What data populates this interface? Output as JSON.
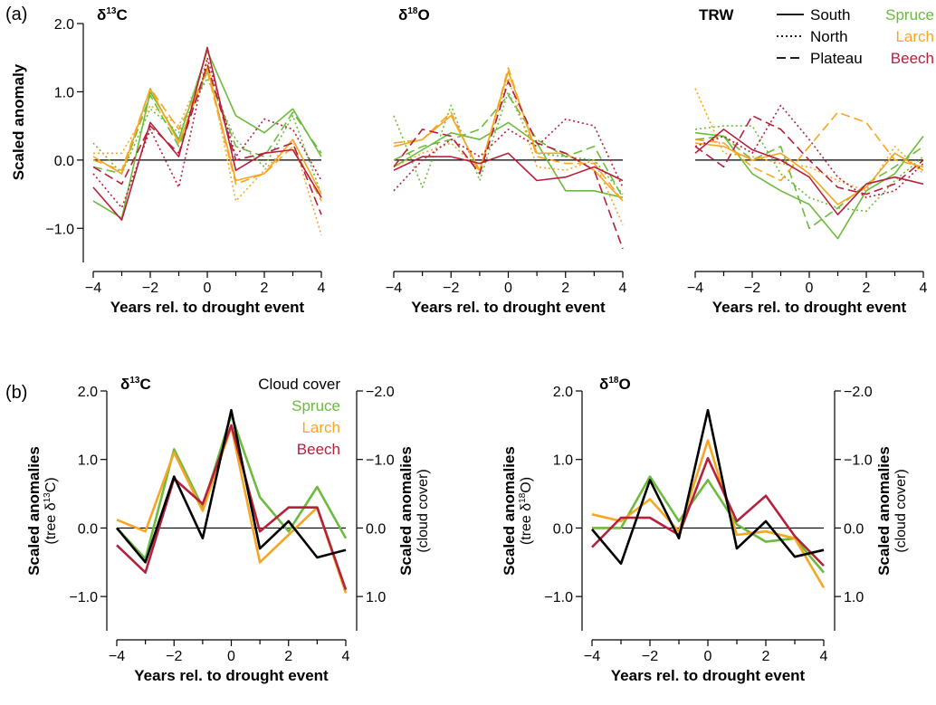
{
  "panel_labels": [
    "(a)",
    "(b)"
  ],
  "legend_a": {
    "linestyles": [
      {
        "label": "South",
        "dash": "solid"
      },
      {
        "label": "North",
        "dash": "dotted"
      },
      {
        "label": "Plateau",
        "dash": "dashed"
      }
    ],
    "species": [
      {
        "label": "Spruce",
        "color": "#6cbb3c"
      },
      {
        "label": "Larch",
        "color": "#f5a623"
      },
      {
        "label": "Beech",
        "color": "#b5203b"
      }
    ]
  },
  "legend_b": [
    {
      "label": "Cloud cover",
      "color": "#000000"
    },
    {
      "label": "Spruce",
      "color": "#6cbb3c"
    },
    {
      "label": "Larch",
      "color": "#f5a623"
    },
    {
      "label": "Beech",
      "color": "#b5203b"
    }
  ],
  "chart_data": [
    {
      "id": "a1",
      "type": "line",
      "title_main": "δ",
      "title_sup": "13",
      "title_rest": "C",
      "xlabel": "Years rel. to drought event",
      "ylabel": "Scaled anomaly",
      "x": [
        -4,
        -3,
        -2,
        -1,
        0,
        1,
        2,
        3,
        4
      ],
      "xlim": [
        -4,
        4
      ],
      "ylim": [
        -1.5,
        2.0
      ],
      "xticks": [
        -4,
        -2,
        0,
        2,
        4
      ],
      "yticks": [
        2.0,
        1.0,
        0.0,
        -1.0
      ],
      "series": [
        {
          "species": "Spruce",
          "site": "South",
          "values": [
            -0.6,
            -0.85,
            1.0,
            0.3,
            1.6,
            0.65,
            0.4,
            0.75,
            0.05
          ]
        },
        {
          "species": "Spruce",
          "site": "North",
          "values": [
            0.25,
            -0.2,
            0.75,
            0.4,
            1.2,
            0.3,
            -0.1,
            0.65,
            -0.5
          ]
        },
        {
          "species": "Spruce",
          "site": "Plateau",
          "values": [
            -0.1,
            -0.2,
            0.95,
            0.2,
            1.3,
            0.2,
            0.05,
            0.7,
            0.1
          ]
        },
        {
          "species": "Larch",
          "site": "South",
          "values": [
            0.05,
            -0.2,
            1.05,
            0.25,
            1.35,
            -0.3,
            -0.2,
            0.3,
            -0.5
          ]
        },
        {
          "species": "Larch",
          "site": "North",
          "values": [
            0.1,
            0.1,
            0.8,
            0.5,
            1.45,
            -0.6,
            -0.15,
            0.3,
            -1.1
          ]
        },
        {
          "species": "Larch",
          "site": "Plateau",
          "values": [
            0.0,
            -0.15,
            1.05,
            0.45,
            1.3,
            -0.35,
            -0.2,
            0.2,
            -0.6
          ]
        },
        {
          "species": "Beech",
          "site": "South",
          "values": [
            -0.4,
            -0.88,
            0.55,
            0.05,
            1.65,
            -0.15,
            0.1,
            0.15,
            -0.55
          ]
        },
        {
          "species": "Beech",
          "site": "North",
          "values": [
            -0.2,
            -0.7,
            0.45,
            -0.4,
            1.5,
            0.05,
            0.6,
            0.45,
            -0.3
          ]
        },
        {
          "species": "Beech",
          "site": "Plateau",
          "values": [
            -0.1,
            -0.35,
            0.5,
            0.1,
            1.4,
            0.0,
            0.1,
            0.25,
            -0.8
          ]
        }
      ]
    },
    {
      "id": "a2",
      "type": "line",
      "title_main": "δ",
      "title_sup": "18",
      "title_rest": "O",
      "xlabel": "Years rel. to drought event",
      "ylabel": "",
      "x": [
        -4,
        -3,
        -2,
        -1,
        0,
        1,
        2,
        3,
        4
      ],
      "xlim": [
        -4,
        4
      ],
      "ylim": [
        -1.5,
        2.0
      ],
      "xticks": [
        -4,
        -2,
        0,
        2,
        4
      ],
      "yticks": [],
      "series": [
        {
          "species": "Spruce",
          "site": "South",
          "values": [
            -0.1,
            0.15,
            0.4,
            0.3,
            0.55,
            0.25,
            -0.45,
            -0.45,
            -0.55
          ]
        },
        {
          "species": "Spruce",
          "site": "North",
          "values": [
            0.65,
            -0.4,
            0.8,
            -0.3,
            1.0,
            0.1,
            0.05,
            0.0,
            -0.5
          ]
        },
        {
          "species": "Spruce",
          "site": "Plateau",
          "values": [
            0.0,
            0.2,
            0.3,
            0.45,
            0.95,
            0.3,
            0.05,
            0.2,
            -0.55
          ]
        },
        {
          "species": "Larch",
          "site": "South",
          "values": [
            0.2,
            0.3,
            0.65,
            -0.15,
            1.3,
            0.1,
            0.1,
            -0.15,
            -0.6
          ]
        },
        {
          "species": "Larch",
          "site": "North",
          "values": [
            -0.1,
            0.1,
            0.25,
            -0.15,
            1.2,
            -0.1,
            -0.15,
            0.0,
            -0.95
          ]
        },
        {
          "species": "Larch",
          "site": "Plateau",
          "values": [
            0.25,
            0.3,
            0.7,
            -0.2,
            1.35,
            0.05,
            -0.05,
            -0.05,
            -0.6
          ]
        },
        {
          "species": "Beech",
          "site": "South",
          "values": [
            -0.15,
            0.05,
            0.05,
            -0.05,
            0.1,
            -0.3,
            -0.25,
            -0.1,
            -0.3
          ]
        },
        {
          "species": "Beech",
          "site": "North",
          "values": [
            -0.45,
            0.0,
            0.3,
            0.05,
            0.45,
            0.2,
            0.6,
            0.5,
            -0.4
          ]
        },
        {
          "species": "Beech",
          "site": "Plateau",
          "values": [
            -0.1,
            0.45,
            0.35,
            -0.2,
            1.15,
            0.25,
            0.1,
            -0.15,
            -1.3
          ]
        }
      ]
    },
    {
      "id": "a3",
      "type": "line",
      "title_main": "TRW",
      "title_sup": "",
      "title_rest": "",
      "xlabel": "Years rel. to drought event",
      "ylabel": "",
      "x": [
        -4,
        -3,
        -2,
        -1,
        0,
        1,
        2,
        3,
        4
      ],
      "xlim": [
        -4,
        4
      ],
      "ylim": [
        -1.5,
        2.0
      ],
      "xticks": [
        -4,
        -2,
        0,
        2,
        4
      ],
      "yticks": [],
      "series": [
        {
          "species": "Spruce",
          "site": "South",
          "values": [
            0.4,
            0.35,
            -0.2,
            -0.45,
            -0.65,
            -1.15,
            -0.45,
            -0.2,
            0.35
          ]
        },
        {
          "species": "Spruce",
          "site": "North",
          "values": [
            0.45,
            0.5,
            0.5,
            -0.2,
            -0.55,
            -0.7,
            -0.75,
            -0.3,
            0.05
          ]
        },
        {
          "species": "Spruce",
          "site": "Plateau",
          "values": [
            0.3,
            0.35,
            0.0,
            0.2,
            -1.0,
            -0.7,
            -0.35,
            -0.1,
            0.2
          ]
        },
        {
          "species": "Larch",
          "site": "South",
          "values": [
            0.25,
            0.2,
            0.0,
            0.1,
            -0.2,
            -0.65,
            -0.4,
            0.1,
            -0.15
          ]
        },
        {
          "species": "Larch",
          "site": "North",
          "values": [
            1.05,
            0.1,
            0.05,
            -0.05,
            -0.1,
            -0.3,
            -0.45,
            0.2,
            -0.2
          ]
        },
        {
          "species": "Larch",
          "site": "Plateau",
          "values": [
            0.3,
            0.25,
            -0.1,
            -0.3,
            0.2,
            0.7,
            0.55,
            0.0,
            -0.1
          ]
        },
        {
          "species": "Beech",
          "site": "South",
          "values": [
            0.1,
            0.45,
            0.15,
            0.0,
            -0.25,
            -0.8,
            -0.35,
            -0.25,
            -0.35
          ]
        },
        {
          "species": "Beech",
          "site": "North",
          "values": [
            0.2,
            0.35,
            0.1,
            0.8,
            0.3,
            -0.25,
            -0.55,
            -0.45,
            -0.05
          ]
        },
        {
          "species": "Beech",
          "site": "Plateau",
          "values": [
            0.2,
            -0.1,
            0.65,
            0.45,
            0.0,
            -0.4,
            -0.5,
            -0.35,
            0.0
          ]
        }
      ]
    },
    {
      "id": "b1",
      "type": "line",
      "title_main": "δ",
      "title_sup": "13",
      "title_rest": "C",
      "xlabel": "Years rel. to drought event",
      "ylabel": "Scaled anomalies",
      "ylabel_sub_pre": "(tree δ",
      "ylabel_sub_sup": "13",
      "ylabel_sub_post": "C)",
      "y2label": "Scaled anomalies",
      "y2label_sub": "(cloud cover)",
      "x": [
        -4,
        -3,
        -2,
        -1,
        0,
        1,
        2,
        3,
        4
      ],
      "xlim": [
        -4,
        4
      ],
      "ylim": [
        -1.5,
        2.0
      ],
      "xticks": [
        -4,
        -2,
        0,
        2,
        4
      ],
      "yticks": [
        2.0,
        1.0,
        0.0,
        -1.0
      ],
      "y2ticks": [
        {
          "v": 2.0,
          "label": "−2.0"
        },
        {
          "v": 1.0,
          "label": "−1.0"
        },
        {
          "v": 0.0,
          "label": "0.0"
        },
        {
          "v": -1.0,
          "label": "1.0"
        }
      ],
      "series": [
        {
          "name": "Spruce",
          "values": [
            0.0,
            -0.45,
            1.15,
            0.3,
            1.65,
            0.45,
            -0.05,
            0.6,
            -0.15
          ]
        },
        {
          "name": "Larch",
          "values": [
            0.12,
            -0.05,
            1.1,
            0.25,
            1.48,
            -0.5,
            -0.1,
            0.3,
            -0.95
          ]
        },
        {
          "name": "Beech",
          "values": [
            -0.25,
            -0.65,
            0.72,
            0.35,
            1.5,
            -0.05,
            0.3,
            0.3,
            -0.9
          ]
        },
        {
          "name": "Cloud cover",
          "values": [
            0.0,
            -0.5,
            0.75,
            -0.15,
            1.72,
            -0.3,
            0.1,
            -0.43,
            -0.32
          ]
        }
      ]
    },
    {
      "id": "b2",
      "type": "line",
      "title_main": "δ",
      "title_sup": "18",
      "title_rest": "O",
      "xlabel": "Years rel. to drought event",
      "ylabel": "Scaled anomalies",
      "ylabel_sub_pre": "(tree δ",
      "ylabel_sub_sup": "18",
      "ylabel_sub_post": "O)",
      "y2label": "Scaled anomalies",
      "y2label_sub": "(cloud cover)",
      "x": [
        -4,
        -3,
        -2,
        -1,
        0,
        1,
        2,
        3,
        4
      ],
      "xlim": [
        -4,
        4
      ],
      "ylim": [
        -1.5,
        2.0
      ],
      "xticks": [
        -4,
        -2,
        0,
        2,
        4
      ],
      "yticks": [
        2.0,
        1.0,
        0.0,
        -1.0
      ],
      "y2ticks": [
        {
          "v": 2.0,
          "label": "−2.0"
        },
        {
          "v": 1.0,
          "label": "−1.0"
        },
        {
          "v": 0.0,
          "label": "0.0"
        },
        {
          "v": -1.0,
          "label": "1.0"
        }
      ],
      "series": [
        {
          "name": "Spruce",
          "values": [
            0.0,
            0.0,
            0.75,
            0.1,
            0.7,
            0.05,
            -0.2,
            -0.15,
            -0.65
          ]
        },
        {
          "name": "Larch",
          "values": [
            0.2,
            0.1,
            0.42,
            -0.05,
            1.28,
            -0.1,
            -0.05,
            -0.15,
            -0.87
          ]
        },
        {
          "name": "Beech",
          "values": [
            -0.28,
            0.15,
            0.15,
            -0.1,
            1.02,
            0.1,
            0.47,
            -0.12,
            -0.55
          ]
        },
        {
          "name": "Cloud cover",
          "values": [
            -0.02,
            -0.52,
            0.7,
            -0.15,
            1.72,
            -0.3,
            0.1,
            -0.42,
            -0.32
          ]
        }
      ]
    }
  ]
}
